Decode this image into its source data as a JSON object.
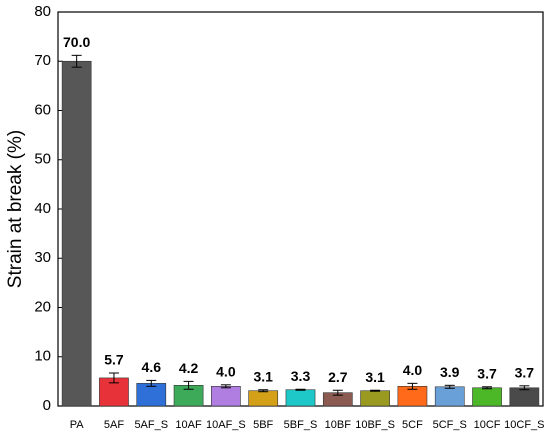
{
  "chart_data": {
    "type": "bar",
    "y_label": "Strain at break (%)",
    "categories": [
      "PA",
      "5AF",
      "5AF_S",
      "10AF",
      "10AF_S",
      "5BF",
      "5BF_S",
      "10BF",
      "10BF_S",
      "5CF",
      "5CF_S",
      "10CF",
      "10CF_S"
    ],
    "values": [
      70.0,
      5.7,
      4.6,
      4.2,
      4.0,
      3.1,
      3.3,
      2.7,
      3.1,
      4.0,
      3.9,
      3.7,
      3.7
    ],
    "value_labels": [
      "70.0",
      "5.7",
      "4.6",
      "4.2",
      "4.0",
      "3.1",
      "3.3",
      "2.7",
      "3.1",
      "4.0",
      "3.9",
      "3.7",
      "3.7"
    ],
    "errors": [
      1.2,
      1.0,
      0.6,
      0.8,
      0.3,
      0.2,
      0.1,
      0.5,
      0.1,
      0.6,
      0.3,
      0.2,
      0.4
    ],
    "colors": [
      "#575757",
      "#e8323a",
      "#2f6fd8",
      "#3daa5a",
      "#b07ee0",
      "#d4a017",
      "#1ec8c8",
      "#8b5a50",
      "#9a9a20",
      "#ff6a1a",
      "#6aa0d8",
      "#4cb828",
      "#4a4a4a"
    ],
    "ylim": [
      0,
      80
    ],
    "yticks": [
      0,
      10,
      20,
      30,
      40,
      50,
      60,
      70,
      80
    ]
  }
}
